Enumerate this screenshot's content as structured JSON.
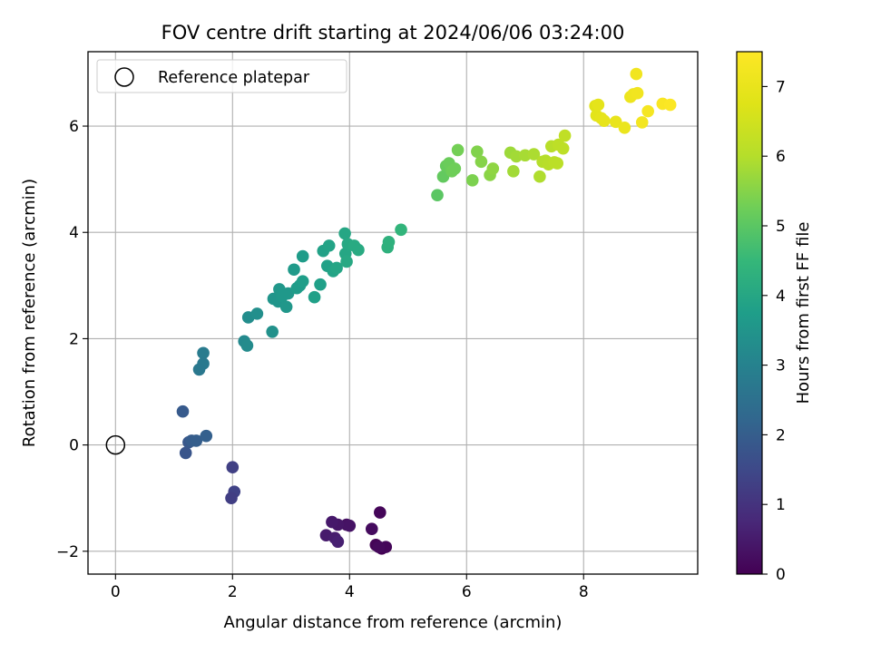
{
  "chart_data": {
    "type": "scatter",
    "title": "FOV centre drift starting at 2024/06/06 03:24:00",
    "xlabel": "Angular distance from reference (arcmin)",
    "ylabel": "Rotation from reference (arcmin)",
    "xlim": [
      -0.47,
      9.95
    ],
    "ylim": [
      -2.43,
      7.4
    ],
    "xticks": [
      0,
      2,
      4,
      6,
      8
    ],
    "yticks": [
      -2,
      0,
      2,
      4,
      6
    ],
    "xtick_labels": [
      "0",
      "2",
      "4",
      "6",
      "8"
    ],
    "ytick_labels": [
      "−2",
      "0",
      "2",
      "4",
      "6"
    ],
    "grid": true,
    "legend": {
      "location": "upper left",
      "entries": [
        "Reference platepar"
      ]
    },
    "reference_point": {
      "x": 0,
      "y": 0,
      "label": "Reference platepar"
    },
    "colorbar": {
      "label": "Hours from first FF file",
      "range": [
        0,
        7.5
      ],
      "ticks": [
        0,
        1,
        2,
        3,
        4,
        5,
        6,
        7
      ],
      "tick_labels": [
        "0",
        "1",
        "2",
        "3",
        "4",
        "5",
        "6",
        "7"
      ],
      "colormap": "viridis"
    },
    "points": [
      {
        "x": 4.52,
        "y": -1.27,
        "c": 0.1
      },
      {
        "x": 4.38,
        "y": -1.58,
        "c": 0.2
      },
      {
        "x": 4.45,
        "y": -1.88,
        "c": 0.05
      },
      {
        "x": 4.55,
        "y": -1.95,
        "c": 0.0
      },
      {
        "x": 4.62,
        "y": -1.92,
        "c": 0.1
      },
      {
        "x": 4.5,
        "y": -1.92,
        "c": 0.15
      },
      {
        "x": 3.95,
        "y": -1.5,
        "c": 0.3
      },
      {
        "x": 4.0,
        "y": -1.52,
        "c": 0.35
      },
      {
        "x": 3.8,
        "y": -1.5,
        "c": 0.4
      },
      {
        "x": 3.7,
        "y": -1.45,
        "c": 0.45
      },
      {
        "x": 3.6,
        "y": -1.7,
        "c": 0.5
      },
      {
        "x": 3.75,
        "y": -1.75,
        "c": 0.55
      },
      {
        "x": 3.8,
        "y": -1.82,
        "c": 0.6
      },
      {
        "x": 2.0,
        "y": -0.42,
        "c": 1.3
      },
      {
        "x": 2.03,
        "y": -0.88,
        "c": 1.35
      },
      {
        "x": 1.98,
        "y": -1.0,
        "c": 1.25
      },
      {
        "x": 1.15,
        "y": 0.63,
        "c": 1.9
      },
      {
        "x": 1.2,
        "y": -0.15,
        "c": 1.8
      },
      {
        "x": 1.25,
        "y": 0.05,
        "c": 1.85
      },
      {
        "x": 1.3,
        "y": 0.08,
        "c": 1.95
      },
      {
        "x": 1.38,
        "y": 0.08,
        "c": 2.0
      },
      {
        "x": 1.55,
        "y": 0.17,
        "c": 2.05
      },
      {
        "x": 1.5,
        "y": 1.73,
        "c": 2.8
      },
      {
        "x": 1.5,
        "y": 1.53,
        "c": 2.75
      },
      {
        "x": 1.43,
        "y": 1.42,
        "c": 2.7
      },
      {
        "x": 2.2,
        "y": 1.95,
        "c": 3.2
      },
      {
        "x": 2.25,
        "y": 1.87,
        "c": 3.25
      },
      {
        "x": 2.27,
        "y": 2.4,
        "c": 3.3
      },
      {
        "x": 2.42,
        "y": 2.47,
        "c": 3.35
      },
      {
        "x": 2.68,
        "y": 2.13,
        "c": 3.4
      },
      {
        "x": 2.7,
        "y": 2.75,
        "c": 3.5
      },
      {
        "x": 2.78,
        "y": 2.7,
        "c": 3.5
      },
      {
        "x": 2.8,
        "y": 2.93,
        "c": 3.55
      },
      {
        "x": 2.85,
        "y": 2.8,
        "c": 3.6
      },
      {
        "x": 2.92,
        "y": 2.6,
        "c": 3.55
      },
      {
        "x": 2.95,
        "y": 2.85,
        "c": 3.6
      },
      {
        "x": 3.05,
        "y": 3.3,
        "c": 3.65
      },
      {
        "x": 3.1,
        "y": 2.95,
        "c": 3.7
      },
      {
        "x": 3.15,
        "y": 3.0,
        "c": 3.7
      },
      {
        "x": 3.2,
        "y": 3.08,
        "c": 3.75
      },
      {
        "x": 3.2,
        "y": 3.55,
        "c": 3.7
      },
      {
        "x": 3.4,
        "y": 2.78,
        "c": 3.8
      },
      {
        "x": 3.5,
        "y": 3.02,
        "c": 3.8
      },
      {
        "x": 3.55,
        "y": 3.65,
        "c": 3.85
      },
      {
        "x": 3.62,
        "y": 3.37,
        "c": 3.85
      },
      {
        "x": 3.65,
        "y": 3.75,
        "c": 3.9
      },
      {
        "x": 3.72,
        "y": 3.27,
        "c": 3.9
      },
      {
        "x": 3.78,
        "y": 3.33,
        "c": 3.95
      },
      {
        "x": 3.92,
        "y": 3.98,
        "c": 4.0
      },
      {
        "x": 3.93,
        "y": 3.6,
        "c": 4.0
      },
      {
        "x": 3.95,
        "y": 3.45,
        "c": 4.05
      },
      {
        "x": 3.97,
        "y": 3.78,
        "c": 4.05
      },
      {
        "x": 4.08,
        "y": 3.75,
        "c": 4.1
      },
      {
        "x": 4.15,
        "y": 3.67,
        "c": 4.1
      },
      {
        "x": 4.65,
        "y": 3.72,
        "c": 4.3
      },
      {
        "x": 4.67,
        "y": 3.82,
        "c": 4.3
      },
      {
        "x": 4.88,
        "y": 4.05,
        "c": 4.4
      },
      {
        "x": 5.5,
        "y": 4.7,
        "c": 5.0
      },
      {
        "x": 5.6,
        "y": 5.05,
        "c": 5.1
      },
      {
        "x": 5.65,
        "y": 5.25,
        "c": 5.15
      },
      {
        "x": 5.7,
        "y": 5.3,
        "c": 5.2
      },
      {
        "x": 5.75,
        "y": 5.15,
        "c": 5.25
      },
      {
        "x": 5.8,
        "y": 5.2,
        "c": 5.25
      },
      {
        "x": 5.85,
        "y": 5.55,
        "c": 5.3
      },
      {
        "x": 6.1,
        "y": 4.98,
        "c": 5.4
      },
      {
        "x": 6.18,
        "y": 5.52,
        "c": 5.45
      },
      {
        "x": 6.25,
        "y": 5.33,
        "c": 5.5
      },
      {
        "x": 6.4,
        "y": 5.08,
        "c": 5.55
      },
      {
        "x": 6.45,
        "y": 5.2,
        "c": 5.6
      },
      {
        "x": 6.75,
        "y": 5.5,
        "c": 5.75
      },
      {
        "x": 6.8,
        "y": 5.15,
        "c": 5.8
      },
      {
        "x": 6.85,
        "y": 5.43,
        "c": 5.8
      },
      {
        "x": 7.0,
        "y": 5.45,
        "c": 5.85
      },
      {
        "x": 7.15,
        "y": 5.47,
        "c": 5.9
      },
      {
        "x": 7.25,
        "y": 5.05,
        "c": 5.95
      },
      {
        "x": 7.3,
        "y": 5.33,
        "c": 6.0
      },
      {
        "x": 7.35,
        "y": 5.35,
        "c": 6.0
      },
      {
        "x": 7.4,
        "y": 5.28,
        "c": 6.05
      },
      {
        "x": 7.45,
        "y": 5.62,
        "c": 6.05
      },
      {
        "x": 7.5,
        "y": 5.32,
        "c": 6.1
      },
      {
        "x": 7.55,
        "y": 5.3,
        "c": 6.1
      },
      {
        "x": 7.57,
        "y": 5.65,
        "c": 6.15
      },
      {
        "x": 7.65,
        "y": 5.58,
        "c": 6.15
      },
      {
        "x": 7.68,
        "y": 5.82,
        "c": 6.2
      },
      {
        "x": 8.2,
        "y": 6.38,
        "c": 6.8
      },
      {
        "x": 8.22,
        "y": 6.2,
        "c": 6.85
      },
      {
        "x": 8.25,
        "y": 6.4,
        "c": 6.9
      },
      {
        "x": 8.3,
        "y": 6.15,
        "c": 6.9
      },
      {
        "x": 8.35,
        "y": 6.1,
        "c": 6.95
      },
      {
        "x": 8.55,
        "y": 6.08,
        "c": 7.0
      },
      {
        "x": 8.7,
        "y": 5.97,
        "c": 7.05
      },
      {
        "x": 8.8,
        "y": 6.55,
        "c": 7.1
      },
      {
        "x": 8.85,
        "y": 6.6,
        "c": 7.15
      },
      {
        "x": 8.9,
        "y": 6.98,
        "c": 7.2
      },
      {
        "x": 8.92,
        "y": 6.62,
        "c": 7.2
      },
      {
        "x": 9.0,
        "y": 6.07,
        "c": 7.25
      },
      {
        "x": 9.1,
        "y": 6.28,
        "c": 7.3
      },
      {
        "x": 9.35,
        "y": 6.42,
        "c": 7.4
      },
      {
        "x": 9.48,
        "y": 6.4,
        "c": 7.45
      }
    ]
  }
}
